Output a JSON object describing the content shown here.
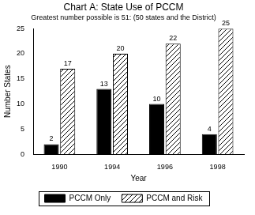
{
  "chart_data": {
    "type": "bar",
    "title": "Chart A: State Use of PCCM",
    "subtitle": "Greatest number possible is 51: (50 states and the District)",
    "x_label": "Year",
    "y_label": "Number States",
    "categories": [
      "1990",
      "1994",
      "1996",
      "1998"
    ],
    "series": [
      {
        "name": "PCCM Only",
        "color": "#000000",
        "values": [
          2,
          13,
          10,
          4
        ]
      },
      {
        "name": "PCCM and Risk",
        "color": "#000000",
        "values": [
          17,
          20,
          22,
          25
        ]
      }
    ],
    "ylim": [
      0,
      25
    ],
    "yticks": [
      0,
      5,
      10,
      15,
      20,
      25
    ],
    "grid": false,
    "legend": "bottom",
    "data_labels": true
  }
}
